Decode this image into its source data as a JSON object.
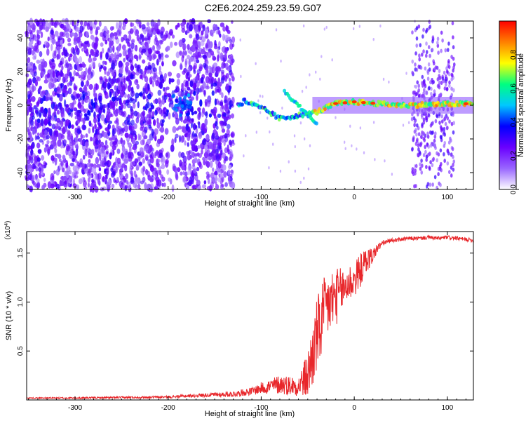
{
  "title": "C2E6.2024.259.23.59.G07",
  "colors": {
    "snr_line": "#e8262a",
    "axes": "#000000",
    "background": "#ffffff"
  },
  "chart_data": [
    {
      "type": "heatmap",
      "title": "C2E6.2024.259.23.59.G07",
      "xlabel": "Height of straight line (km)",
      "ylabel": "Frequency (Hz)",
      "xlim": [
        -352,
        128
      ],
      "ylim": [
        -50,
        50
      ],
      "x_ticks": [
        "-300",
        "-200",
        "-100",
        "0",
        "100"
      ],
      "y_ticks": [
        "40",
        "20",
        "0",
        "-20",
        "-40"
      ],
      "colorbar": {
        "label": "Normalized spectral amplitude",
        "range": [
          0,
          1
        ],
        "ticks": [
          "0.0",
          "0.2",
          "0.4",
          "0.6",
          "0.8"
        ],
        "colormap": [
          "#ffffff",
          "#9966ff",
          "#6a00ff",
          "#0000ff",
          "#00c8ff",
          "#00ff80",
          "#ffff00",
          "#ff8000",
          "#ff0000"
        ]
      },
      "features": [
        {
          "description": "broadband noise region",
          "x_range": [
            -352,
            -130
          ],
          "y_range": [
            -50,
            50
          ]
        },
        {
          "description": "signal track",
          "points": [
            [
              -120,
              3
            ],
            [
              -95,
              -3
            ],
            [
              -80,
              -8
            ],
            [
              -60,
              -6
            ],
            [
              -40,
              -4
            ],
            [
              -20,
              1
            ],
            [
              0,
              2
            ],
            [
              50,
              0
            ],
            [
              128,
              1
            ]
          ]
        },
        {
          "description": "noise band",
          "x_range": [
            62,
            108
          ],
          "y_range": [
            -50,
            50
          ]
        }
      ],
      "grid": false
    },
    {
      "type": "line",
      "xlabel": "Height of straight line (km)",
      "ylabel": "SNR (10 * v/v)",
      "y_multiplier": "(x10^4)",
      "xlim": [
        -352,
        128
      ],
      "ylim": [
        0,
        1.72
      ],
      "x_ticks": [
        "-300",
        "-200",
        "-100",
        "0",
        "100"
      ],
      "y_ticks": [
        "0.5",
        "1.0",
        "1.5"
      ],
      "series": [
        {
          "color": "#e8262a",
          "x": [
            -352,
            -300,
            -250,
            -200,
            -160,
            -130,
            -110,
            -100,
            -90,
            -80,
            -70,
            -60,
            -50,
            -45,
            -40,
            -35,
            -30,
            -25,
            -20,
            -15,
            -10,
            -5,
            0,
            5,
            10,
            15,
            20,
            25,
            30,
            40,
            50,
            60,
            70,
            80,
            90,
            100,
            110,
            120,
            128
          ],
          "y": [
            0.02,
            0.02,
            0.025,
            0.03,
            0.05,
            0.06,
            0.09,
            0.12,
            0.14,
            0.16,
            0.15,
            0.14,
            0.25,
            0.45,
            0.65,
            0.8,
            0.95,
            1.0,
            1.05,
            1.1,
            1.15,
            1.2,
            1.22,
            1.3,
            1.38,
            1.44,
            1.48,
            1.55,
            1.6,
            1.63,
            1.64,
            1.65,
            1.65,
            1.66,
            1.65,
            1.66,
            1.65,
            1.64,
            1.63
          ],
          "noise": [
            0.005,
            0.008,
            0.01,
            0.012,
            0.02,
            0.03,
            0.04,
            0.06,
            0.08,
            0.1,
            0.1,
            0.1,
            0.25,
            0.35,
            0.4,
            0.4,
            0.35,
            0.35,
            0.3,
            0.25,
            0.22,
            0.2,
            0.18,
            0.18,
            0.15,
            0.12,
            0.08,
            0.05,
            0.03,
            0.02,
            0.02,
            0.02,
            0.02,
            0.02,
            0.02,
            0.02,
            0.02,
            0.02,
            0.02
          ]
        }
      ],
      "grid": false
    }
  ]
}
